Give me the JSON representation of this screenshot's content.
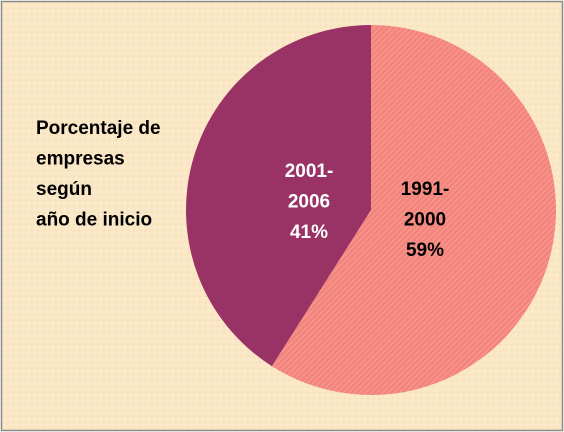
{
  "chart_data": {
    "type": "pie",
    "title_lines": [
      "Porcentaje de",
      "empresas",
      "según",
      "año de inicio"
    ],
    "categories": [
      "1991-2000",
      "2001-2006"
    ],
    "values": [
      59,
      41
    ],
    "value_labels": [
      "59%",
      "41%"
    ],
    "colors": [
      "#f4857c",
      "#993366"
    ],
    "label_colors": [
      "#000000",
      "#ffffff"
    ]
  }
}
